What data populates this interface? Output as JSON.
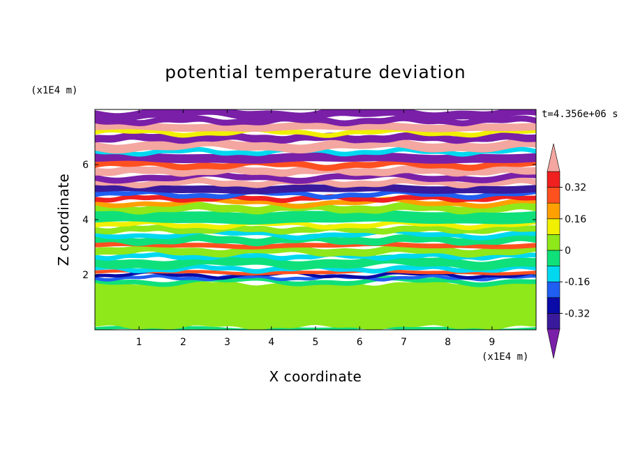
{
  "chart_data": {
    "type": "heatmap",
    "title": "potential temperature deviation",
    "xlabel": "X coordinate",
    "ylabel": "Z coordinate",
    "x_unit": "(x1E4 m)",
    "y_unit": "(x1E4 m)",
    "time_label": "t=4.356e+06 s",
    "xlim": [
      0,
      10
    ],
    "ylim": [
      0,
      8
    ],
    "x_ticks": [
      "1",
      "2",
      "3",
      "4",
      "5",
      "6",
      "7",
      "8",
      "9"
    ],
    "y_ticks": [
      "2",
      "4",
      "6"
    ],
    "colorbar": {
      "levels": [
        -0.4,
        -0.32,
        -0.24,
        -0.16,
        -0.08,
        0,
        0.08,
        0.16,
        0.24,
        0.32,
        0.4
      ],
      "labels": [
        "0.32",
        "0.16",
        "0",
        "-0.16",
        "-0.32"
      ],
      "colors": [
        "#7a1fa8",
        "#3a1a9c",
        "#0a0aa8",
        "#1f5ef0",
        "#00d8f0",
        "#10e07a",
        "#8ee81a",
        "#f0f000",
        "#ffa000",
        "#ff5020",
        "#f02020",
        "#f4a6a0"
      ],
      "extend": "both"
    },
    "bands": [
      {
        "z": [
          0.0,
          0.1
        ],
        "color": "#10e07a"
      },
      {
        "z": [
          0.1,
          1.7
        ],
        "color": "#8ee81a"
      },
      {
        "z": [
          1.7,
          1.85
        ],
        "color": "#10e07a"
      },
      {
        "z": [
          1.85,
          1.95
        ],
        "color": "#1f5ef0"
      },
      {
        "z": [
          1.95,
          2.05
        ],
        "color": "#0a0aa8"
      },
      {
        "z": [
          2.05,
          2.15
        ],
        "color": "#ff5020"
      },
      {
        "z": [
          2.15,
          2.3
        ],
        "color": "#00d8f0"
      },
      {
        "z": [
          2.3,
          2.6
        ],
        "color": "#10e07a"
      },
      {
        "z": [
          2.6,
          2.75
        ],
        "color": "#00d8f0"
      },
      {
        "z": [
          2.75,
          3.0
        ],
        "color": "#8ee81a"
      },
      {
        "z": [
          3.0,
          3.15
        ],
        "color": "#ff5020"
      },
      {
        "z": [
          3.15,
          3.4
        ],
        "color": "#10e07a"
      },
      {
        "z": [
          3.4,
          3.55
        ],
        "color": "#00d8f0"
      },
      {
        "z": [
          3.55,
          3.75
        ],
        "color": "#8ee81a"
      },
      {
        "z": [
          3.75,
          3.9
        ],
        "color": "#f0f000"
      },
      {
        "z": [
          3.9,
          4.3
        ],
        "color": "#10e07a"
      },
      {
        "z": [
          4.3,
          4.55
        ],
        "color": "#8ee81a"
      },
      {
        "z": [
          4.55,
          4.7
        ],
        "color": "#ffa000"
      },
      {
        "z": [
          4.7,
          4.85
        ],
        "color": "#f02020"
      },
      {
        "z": [
          4.85,
          5.0
        ],
        "color": "#1f5ef0"
      },
      {
        "z": [
          5.0,
          5.25
        ],
        "color": "#3a1a9c"
      },
      {
        "z": [
          5.25,
          5.45
        ],
        "color": "#f4a6a0"
      },
      {
        "z": [
          5.45,
          5.65
        ],
        "color": "#7a1fa8"
      },
      {
        "z": [
          5.65,
          5.9
        ],
        "color": "#f4a6a0"
      },
      {
        "z": [
          5.9,
          6.1
        ],
        "color": "#ff5020"
      },
      {
        "z": [
          6.1,
          6.4
        ],
        "color": "#7a1fa8"
      },
      {
        "z": [
          6.4,
          6.55
        ],
        "color": "#00d8f0"
      },
      {
        "z": [
          6.55,
          6.85
        ],
        "color": "#f4a6a0"
      },
      {
        "z": [
          6.85,
          7.1
        ],
        "color": "#7a1fa8"
      },
      {
        "z": [
          7.1,
          7.25
        ],
        "color": "#f0f000"
      },
      {
        "z": [
          7.25,
          7.5
        ],
        "color": "#f4a6a0"
      },
      {
        "z": [
          7.5,
          7.7
        ],
        "color": "#7a1fa8"
      },
      {
        "z": [
          7.7,
          8.0
        ],
        "color": "#7a1fa8"
      }
    ]
  }
}
